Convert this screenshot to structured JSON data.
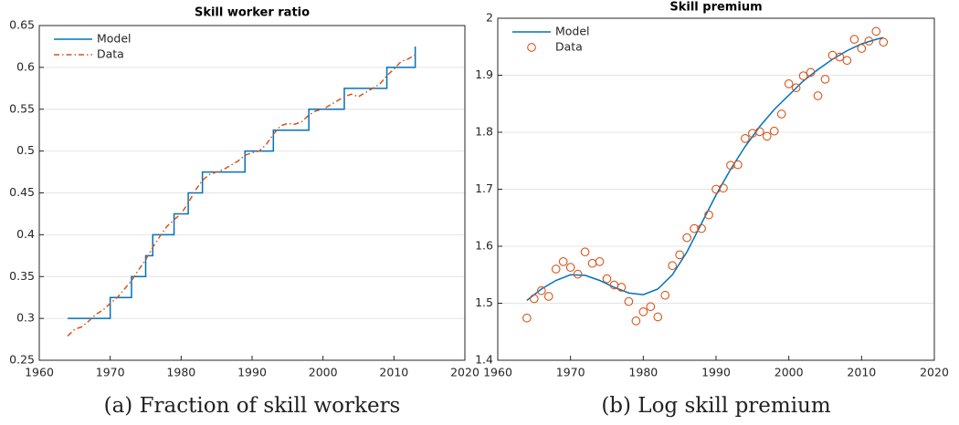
{
  "chart_data": [
    {
      "type": "line",
      "title": "Skill worker ratio",
      "caption": "(a) Fraction of skill workers",
      "xlim": [
        1960,
        2020
      ],
      "xticks": [
        1960,
        1970,
        1980,
        1990,
        2000,
        2010,
        2020
      ],
      "ylim": [
        0.25,
        0.65
      ],
      "yticks": [
        0.25,
        0.3,
        0.35,
        0.4,
        0.45,
        0.5,
        0.55,
        0.6,
        0.65
      ],
      "grid": true,
      "legend": "upper-left",
      "series": [
        {
          "name": "Model",
          "color": "#0072bd",
          "drawstyle": "steps-post",
          "linestyle": "solid",
          "x": [
            1964,
            1965,
            1966,
            1967,
            1968,
            1969,
            1970,
            1971,
            1972,
            1973,
            1974,
            1975,
            1976,
            1977,
            1978,
            1979,
            1980,
            1981,
            1982,
            1983,
            1984,
            1985,
            1986,
            1987,
            1988,
            1989,
            1990,
            1991,
            1992,
            1993,
            1994,
            1995,
            1996,
            1997,
            1998,
            1999,
            2000,
            2001,
            2002,
            2003,
            2004,
            2005,
            2006,
            2007,
            2008,
            2009,
            2010,
            2011,
            2012,
            2013
          ],
          "values": [
            0.3,
            0.3,
            0.3,
            0.3,
            0.3,
            0.3,
            0.325,
            0.325,
            0.325,
            0.35,
            0.35,
            0.375,
            0.4,
            0.4,
            0.4,
            0.425,
            0.425,
            0.45,
            0.45,
            0.475,
            0.475,
            0.475,
            0.475,
            0.475,
            0.475,
            0.5,
            0.5,
            0.5,
            0.5,
            0.525,
            0.525,
            0.525,
            0.525,
            0.525,
            0.55,
            0.55,
            0.55,
            0.55,
            0.55,
            0.575,
            0.575,
            0.575,
            0.575,
            0.575,
            0.575,
            0.6,
            0.6,
            0.6,
            0.6,
            0.625
          ]
        },
        {
          "name": "Data",
          "color": "#d95319",
          "drawstyle": "default",
          "linestyle": "dashdot",
          "x": [
            1964,
            1965,
            1966,
            1967,
            1968,
            1969,
            1970,
            1971,
            1972,
            1973,
            1974,
            1975,
            1976,
            1977,
            1978,
            1979,
            1980,
            1981,
            1982,
            1983,
            1984,
            1985,
            1986,
            1987,
            1988,
            1989,
            1990,
            1991,
            1992,
            1993,
            1994,
            1995,
            1996,
            1997,
            1998,
            1999,
            2000,
            2001,
            2002,
            2003,
            2004,
            2005,
            2006,
            2007,
            2008,
            2009,
            2010,
            2011,
            2012,
            2013
          ],
          "values": [
            0.279,
            0.287,
            0.29,
            0.297,
            0.305,
            0.31,
            0.318,
            0.325,
            0.335,
            0.345,
            0.358,
            0.37,
            0.385,
            0.398,
            0.41,
            0.418,
            0.425,
            0.438,
            0.453,
            0.465,
            0.472,
            0.475,
            0.478,
            0.483,
            0.488,
            0.495,
            0.498,
            0.5,
            0.508,
            0.52,
            0.53,
            0.533,
            0.532,
            0.535,
            0.543,
            0.548,
            0.55,
            0.555,
            0.56,
            0.565,
            0.568,
            0.565,
            0.57,
            0.575,
            0.58,
            0.59,
            0.598,
            0.607,
            0.61,
            0.615
          ]
        }
      ]
    },
    {
      "type": "line",
      "title": "Skill premium",
      "caption": "(b) Log skill premium",
      "xlim": [
        1960,
        2020
      ],
      "xticks": [
        1960,
        1970,
        1980,
        1990,
        2000,
        2010,
        2020
      ],
      "ylim": [
        1.4,
        2
      ],
      "yticks": [
        1.4,
        1.5,
        1.6,
        1.7,
        1.8,
        1.9,
        2
      ],
      "grid": true,
      "legend": "upper-left",
      "series": [
        {
          "name": "Model",
          "color": "#0072bd",
          "drawstyle": "default",
          "linestyle": "solid",
          "x": [
            1964,
            1966,
            1968,
            1970,
            1972,
            1974,
            1976,
            1978,
            1980,
            1982,
            1984,
            1986,
            1988,
            1990,
            1992,
            1994,
            1996,
            1998,
            2000,
            2002,
            2004,
            2006,
            2008,
            2010,
            2012,
            2013
          ],
          "values": [
            1.505,
            1.525,
            1.54,
            1.55,
            1.549,
            1.54,
            1.528,
            1.518,
            1.515,
            1.525,
            1.55,
            1.59,
            1.64,
            1.69,
            1.735,
            1.775,
            1.81,
            1.84,
            1.865,
            1.89,
            1.91,
            1.928,
            1.943,
            1.955,
            1.963,
            1.966
          ]
        },
        {
          "name": "Data",
          "color": "#d95319",
          "drawstyle": "none",
          "marker": "o",
          "x": [
            1964,
            1965,
            1966,
            1967,
            1968,
            1969,
            1970,
            1971,
            1972,
            1973,
            1974,
            1975,
            1976,
            1977,
            1978,
            1979,
            1980,
            1981,
            1982,
            1983,
            1984,
            1985,
            1986,
            1987,
            1988,
            1989,
            1990,
            1991,
            1992,
            1993,
            1994,
            1995,
            1996,
            1997,
            1998,
            1999,
            2000,
            2001,
            2002,
            2003,
            2004,
            2005,
            2006,
            2007,
            2008,
            2009,
            2010,
            2011,
            2012,
            2013
          ],
          "values": [
            1.474,
            1.508,
            1.522,
            1.512,
            1.56,
            1.573,
            1.563,
            1.551,
            1.59,
            1.57,
            1.573,
            1.543,
            1.532,
            1.528,
            1.503,
            1.469,
            1.485,
            1.494,
            1.476,
            1.514,
            1.566,
            1.585,
            1.615,
            1.631,
            1.631,
            1.655,
            1.7,
            1.702,
            1.742,
            1.743,
            1.789,
            1.798,
            1.801,
            1.793,
            1.802,
            1.832,
            1.885,
            1.878,
            1.899,
            1.905,
            1.864,
            1.893,
            1.935,
            1.932,
            1.926,
            1.963,
            1.947,
            1.96,
            1.977,
            1.958
          ]
        }
      ]
    }
  ]
}
